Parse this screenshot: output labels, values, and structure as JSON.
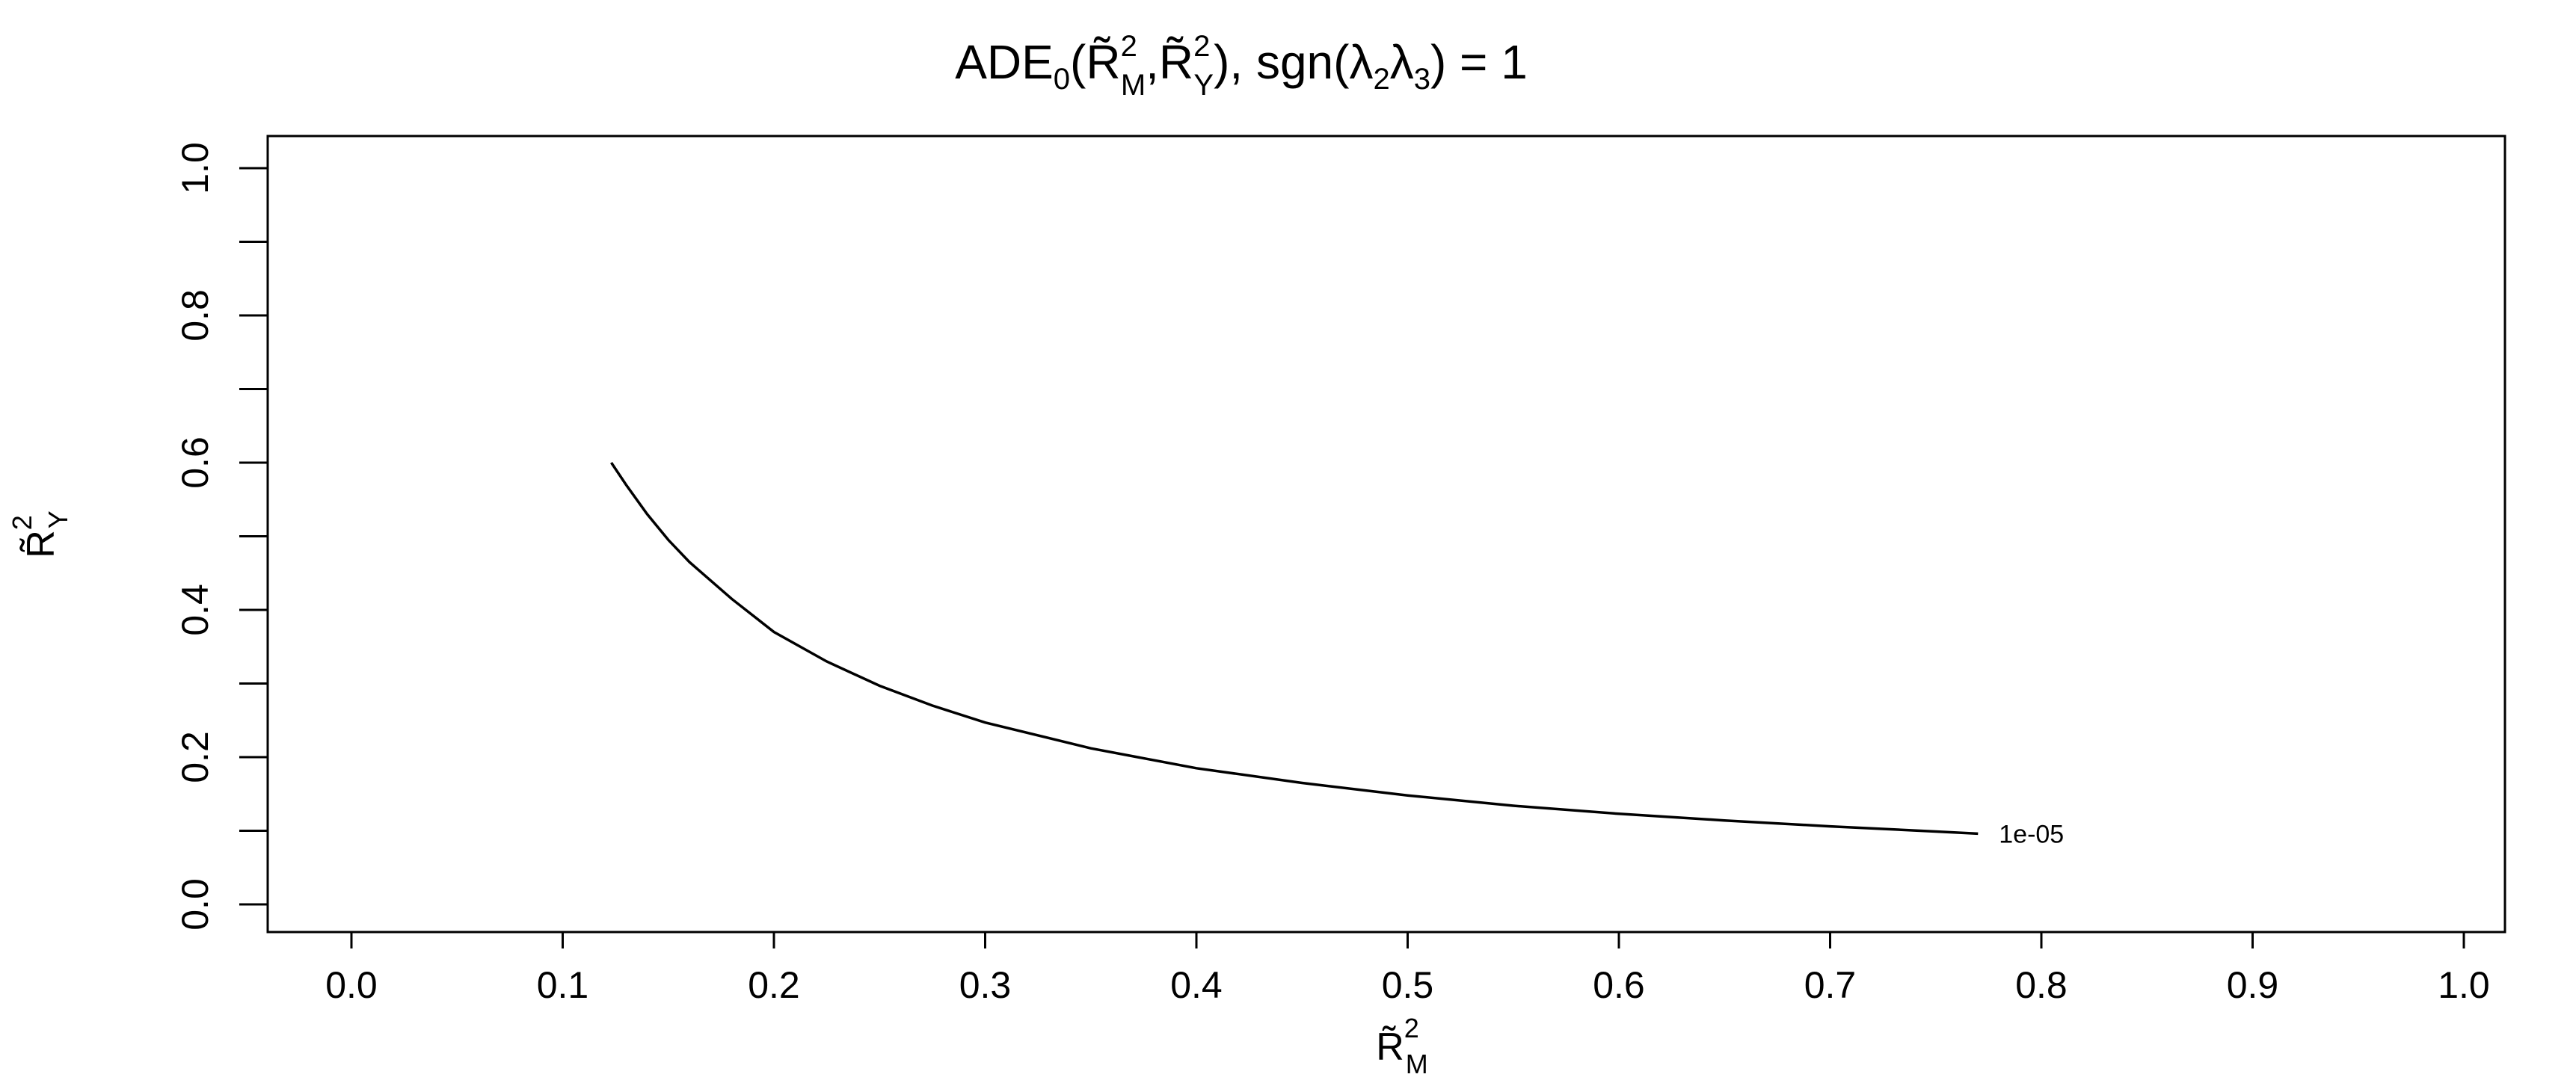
{
  "chart_data": {
    "type": "line",
    "title": "ADE₀(R̃²_M, R̃²_Y), sgn(λ₂λ₃) = 1",
    "title_parts": {
      "main": "ADE",
      "sub0": "0",
      "args": "(R̃",
      "sup1": "2",
      "subM": "M",
      "comma": ",R̃",
      "sup2": "2",
      "subY": "Y",
      "rest": "), sgn(λ",
      "l2": "2",
      "lam": "λ",
      "l3": "3",
      "end": ") = 1"
    },
    "xlabel": "R̃²_M",
    "xlabel_parts": {
      "base": "R̃",
      "sup": "2",
      "sub": "M"
    },
    "ylabel": "R̃²_Y",
    "ylabel_parts": {
      "base": "R̃",
      "sup": "2",
      "sub": "Y"
    },
    "xlim": [
      0.0,
      1.0
    ],
    "ylim": [
      0.0,
      1.0
    ],
    "x_ticks": [
      "0.0",
      "0.1",
      "0.2",
      "0.3",
      "0.4",
      "0.5",
      "0.6",
      "0.7",
      "0.8",
      "0.9",
      "1.0"
    ],
    "y_ticks": [
      "0.0",
      "0.2",
      "0.4",
      "0.6",
      "0.8",
      "1.0"
    ],
    "grid": false,
    "series": [
      {
        "name": "1e-05",
        "x": [
          0.123,
          0.13,
          0.14,
          0.15,
          0.16,
          0.18,
          0.2,
          0.225,
          0.25,
          0.275,
          0.3,
          0.35,
          0.4,
          0.45,
          0.5,
          0.55,
          0.6,
          0.65,
          0.7,
          0.75,
          0.77
        ],
        "y": [
          0.6,
          0.57,
          0.53,
          0.495,
          0.465,
          0.415,
          0.37,
          0.33,
          0.297,
          0.27,
          0.247,
          0.212,
          0.185,
          0.165,
          0.148,
          0.134,
          0.123,
          0.114,
          0.106,
          0.099,
          0.096
        ]
      }
    ],
    "annotations": [
      {
        "text": "1e-05",
        "x": 0.77,
        "y": 0.096
      }
    ]
  }
}
